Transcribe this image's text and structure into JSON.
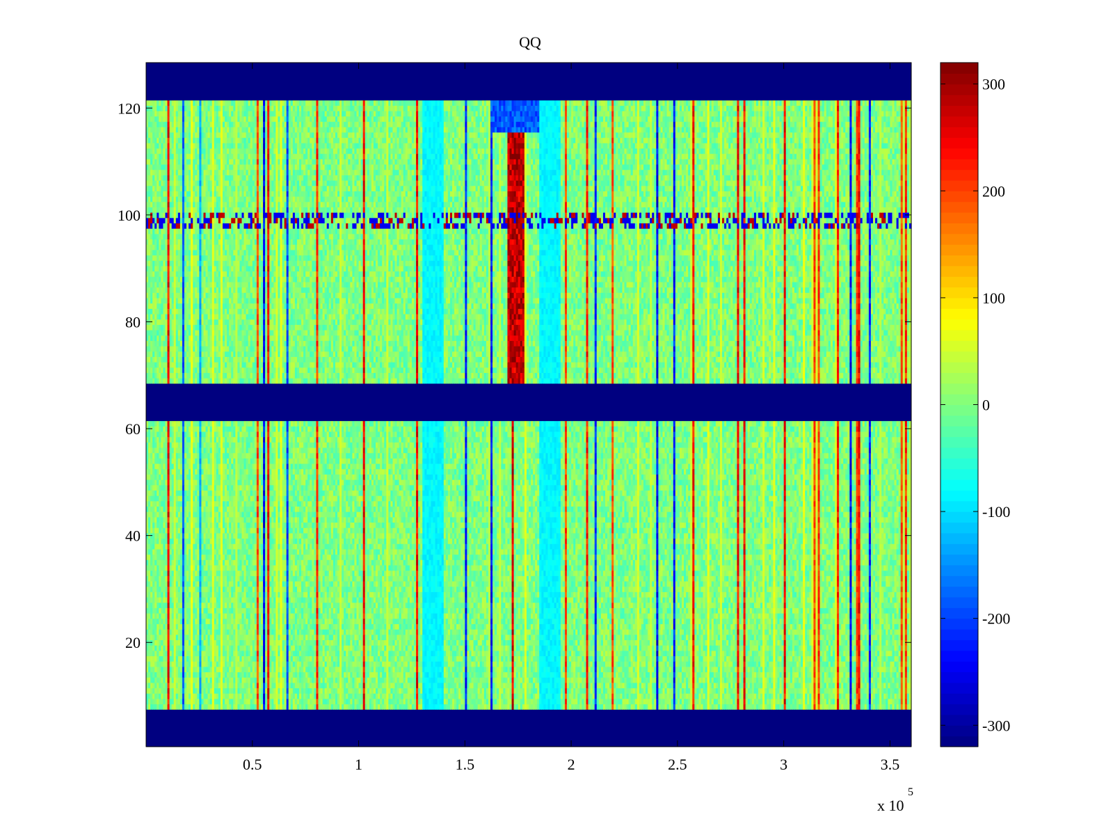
{
  "chart_data": {
    "type": "heatmap",
    "title": "QQ",
    "xlabel": "",
    "ylabel": "",
    "x_multiplier_label": "x 10",
    "x_multiplier_exponent": "5",
    "xlim": [
      0,
      3.6
    ],
    "ylim": [
      0.5,
      128.5
    ],
    "xticks": [
      0.5,
      1,
      1.5,
      2,
      2.5,
      3,
      3.5
    ],
    "xtick_labels": [
      "0.5",
      "1",
      "1.5",
      "2",
      "2.5",
      "3",
      "3.5"
    ],
    "yticks": [
      20,
      40,
      60,
      80,
      100,
      120
    ],
    "ytick_labels": [
      "20",
      "40",
      "60",
      "80",
      "100",
      "120"
    ],
    "colormap": "jet",
    "clim": [
      -320,
      320
    ],
    "colorbar": {
      "ticks": [
        -300,
        -200,
        -100,
        0,
        100,
        200,
        300
      ],
      "tick_labels": [
        "-300",
        "-200",
        "-100",
        "0",
        "100",
        "200",
        "300"
      ]
    },
    "rows": 128,
    "columns": 360,
    "masked_row_bands": [
      [
        1,
        7
      ],
      [
        62,
        68
      ],
      [
        122,
        128
      ]
    ],
    "background_value": 0,
    "vertical_features": [
      {
        "x": 0.1,
        "value": 280
      },
      {
        "x": 0.25,
        "value": -150
      },
      {
        "x": 0.57,
        "value": 280
      },
      {
        "x": 0.8,
        "value": 250
      },
      {
        "x": 1.02,
        "value": 280
      },
      {
        "x": 1.27,
        "value": 280
      },
      {
        "x": 1.72,
        "value": 300
      },
      {
        "x": 2.48,
        "value": -260
      },
      {
        "x": 2.78,
        "value": 280
      },
      {
        "x": 3.01,
        "value": 280
      },
      {
        "x": 3.36,
        "value": 280
      }
    ],
    "notable_regions": [
      {
        "x": [
          1.7,
          1.78
        ],
        "y": [
          69,
          121
        ],
        "value": 300,
        "label": "strong positive stripe"
      },
      {
        "x": [
          1.62,
          1.95
        ],
        "y": [
          116,
          121
        ],
        "value": -200,
        "label": "negative patch"
      },
      {
        "x": [
          1.3,
          1.4
        ],
        "y": [
          8,
          121
        ],
        "value": -90,
        "label": "cyan column"
      },
      {
        "x": [
          1.85,
          1.95
        ],
        "y": [
          8,
          121
        ],
        "value": -90,
        "label": "cyan column"
      },
      {
        "x": [
          0.0,
          3.6
        ],
        "y": [
          98,
          100
        ],
        "value": -250,
        "label": "mixed row"
      }
    ]
  }
}
